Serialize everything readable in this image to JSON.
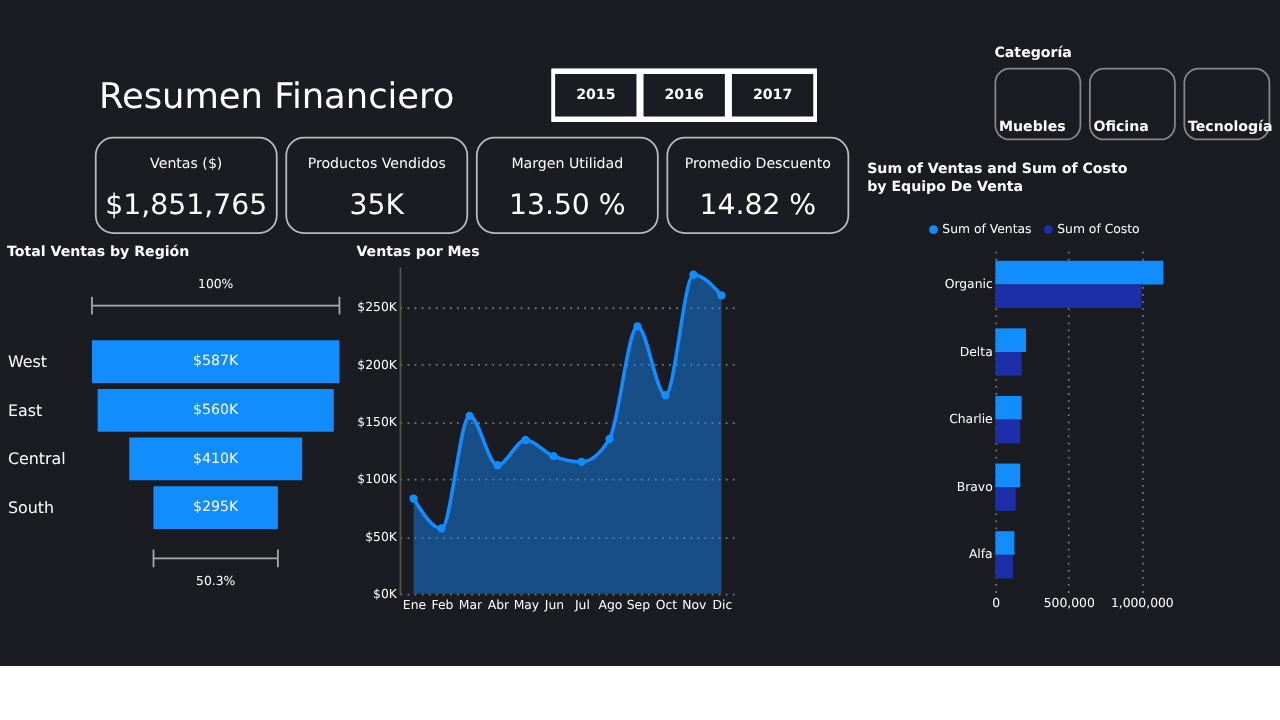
{
  "chart_data": [
    {
      "type": "other",
      "title": "Resumen Financiero",
      "categories": [
        "Ventas ($)",
        "Productos Vendidos",
        "Margen Utilidad",
        "Promedio Descuento"
      ],
      "values": [
        1851765,
        35000,
        13.5,
        14.82
      ],
      "value_labels": [
        "$1,851,765",
        "35K",
        "13.50 %",
        "14.82 %"
      ]
    },
    {
      "type": "other",
      "categories": [
        "2015",
        "2016",
        "2017"
      ]
    },
    {
      "type": "other",
      "title": "Categoría",
      "categories": [
        "Muebles",
        "Oficina",
        "Tecnología"
      ]
    },
    {
      "type": "other",
      "title": "Total Ventas by Región",
      "categories": [
        "West",
        "East",
        "Central",
        "South"
      ],
      "values": [
        587000,
        560000,
        410000,
        295000
      ],
      "value_labels": [
        "$587K",
        "$560K",
        "$410K",
        "$295K"
      ],
      "color": "#118dff",
      "annotations": [
        "100%",
        "50.3%"
      ]
    },
    {
      "type": "area",
      "title": "Ventas por Mes",
      "categories": [
        "Ene",
        "Feb",
        "Mar",
        "Abr",
        "May",
        "Jun",
        "Jul",
        "Ago",
        "Sep",
        "Oct",
        "Nov",
        "Dic"
      ],
      "values": [
        83000,
        57000,
        155000,
        112000,
        134000,
        120000,
        115000,
        135000,
        233000,
        173000,
        278000,
        260000
      ],
      "color": "#118dff",
      "marker": "circle",
      "grid": "y",
      "ylim": [
        0,
        285000
      ],
      "yticks": [
        {
          "value": 0,
          "label": "$0K"
        },
        {
          "value": 50000,
          "label": "$50K"
        },
        {
          "value": 100000,
          "label": "$100K"
        },
        {
          "value": 150000,
          "label": "$150K"
        },
        {
          "value": 200000,
          "label": "$200K"
        },
        {
          "value": 250000,
          "label": "$250K"
        }
      ]
    },
    {
      "type": "bar",
      "orientation": "horizontal",
      "title": "Sum of Ventas and Sum of Costo\nby Equipo De Venta",
      "categories": [
        "Organic",
        "Delta",
        "Charlie",
        "Bravo",
        "Alfa"
      ],
      "legend": "top left",
      "grid": "x",
      "series": [
        {
          "name": "Sum of Ventas",
          "color": "#118dff",
          "values": [
            1150000,
            210000,
            180000,
            170000,
            130000
          ]
        },
        {
          "name": "Sum of Costo",
          "color": "#1c2fa8",
          "values": [
            1000000,
            180000,
            170000,
            140000,
            120000
          ]
        }
      ],
      "xlim": [
        0,
        1150000
      ],
      "xticks": [
        0,
        {
          "value": 500000,
          "label": "500,000"
        },
        {
          "value": 1000000,
          "label": "1,000,000"
        }
      ]
    }
  ]
}
